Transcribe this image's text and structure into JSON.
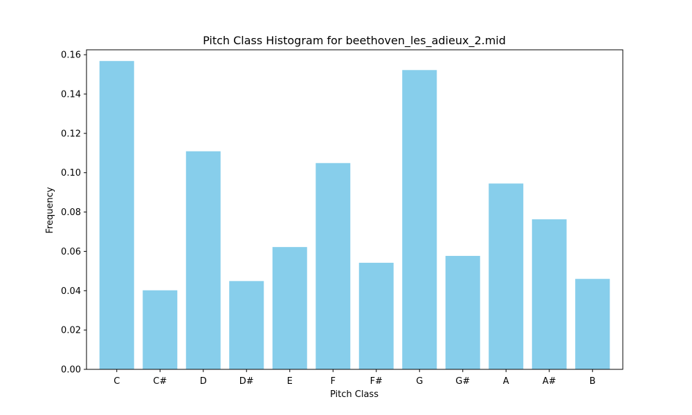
{
  "chart_data": {
    "type": "bar",
    "title": "Pitch Class Histogram for beethoven_les_adieux_2.mid",
    "xlabel": "Pitch Class",
    "ylabel": "Frequency",
    "categories": [
      "C",
      "C#",
      "D",
      "D#",
      "E",
      "F",
      "F#",
      "G",
      "G#",
      "A",
      "A#",
      "B"
    ],
    "values": [
      0.1568,
      0.0402,
      0.1109,
      0.0449,
      0.0622,
      0.1049,
      0.0542,
      0.1522,
      0.0577,
      0.0945,
      0.0763,
      0.046
    ],
    "ylim": [
      0,
      0.1625
    ],
    "yticks": [
      0.0,
      0.02,
      0.04,
      0.06,
      0.08,
      0.1,
      0.12,
      0.14,
      0.16
    ],
    "ytick_labels": [
      "0.00",
      "0.02",
      "0.04",
      "0.06",
      "0.08",
      "0.10",
      "0.12",
      "0.14",
      "0.16"
    ],
    "bar_color": "#87ceeb",
    "grid": false,
    "legend": "none"
  }
}
